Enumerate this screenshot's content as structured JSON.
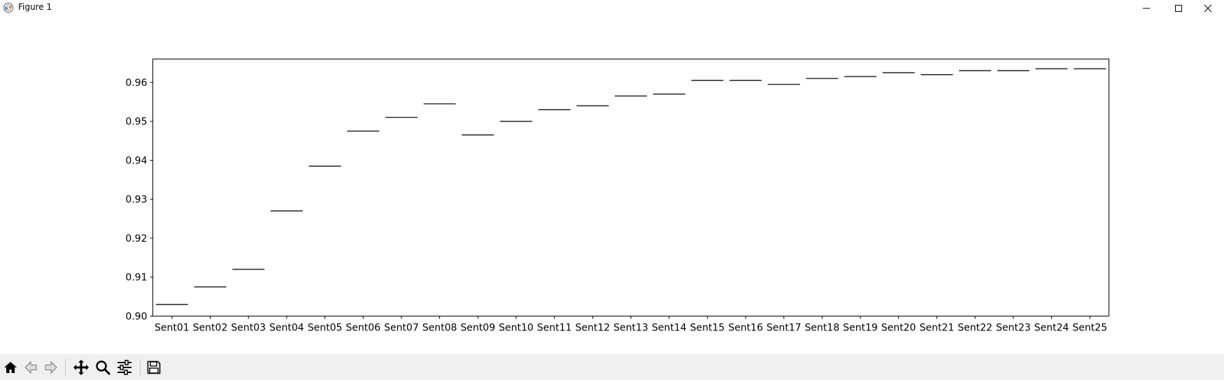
{
  "window": {
    "title": "Figure 1",
    "icon": "matplotlib-icon",
    "controls": [
      "minimize-icon",
      "maximize-icon",
      "close-icon"
    ]
  },
  "toolbar": {
    "buttons": [
      "home-icon",
      "back-arrow-icon",
      "forward-arrow-icon",
      "pan-icon",
      "zoom-icon",
      "configure-subplots-icon",
      "save-icon"
    ]
  },
  "chart_data": {
    "type": "bar",
    "title": "",
    "xlabel": "",
    "ylabel": "",
    "categories": [
      "Sent01",
      "Sent02",
      "Sent03",
      "Sent04",
      "Sent05",
      "Sent06",
      "Sent07",
      "Sent08",
      "Sent09",
      "Sent10",
      "Sent11",
      "Sent12",
      "Sent13",
      "Sent14",
      "Sent15",
      "Sent16",
      "Sent17",
      "Sent18",
      "Sent19",
      "Sent20",
      "Sent21",
      "Sent22",
      "Sent23",
      "Sent24",
      "Sent25"
    ],
    "values": [
      0.903,
      0.9075,
      0.912,
      0.927,
      0.9385,
      0.9475,
      0.951,
      0.9545,
      0.9465,
      0.95,
      0.953,
      0.954,
      0.9565,
      0.957,
      0.9605,
      0.9605,
      0.9595,
      0.961,
      0.9615,
      0.9625,
      0.962,
      0.963,
      0.963,
      0.9635,
      0.9635
    ],
    "ylim": [
      0.9,
      0.966
    ],
    "yticks": [
      0.9,
      0.91,
      0.92,
      0.93,
      0.94,
      0.95,
      0.96
    ],
    "ytick_labels": [
      "0.90",
      "0.91",
      "0.92",
      "0.93",
      "0.94",
      "0.95",
      "0.96"
    ],
    "grid": false,
    "mark_color": "#333333"
  }
}
